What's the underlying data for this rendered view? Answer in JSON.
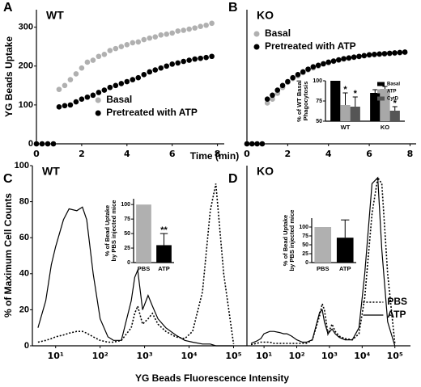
{
  "chart_data": [
    {
      "type": "scatter",
      "panel": "A",
      "title": "WT",
      "xlabel": "Time (min)",
      "ylabel": "YG Beads Uptake",
      "x": [
        0,
        0.25,
        0.5,
        0.75,
        1,
        1.25,
        1.5,
        1.75,
        2,
        2.25,
        2.5,
        2.75,
        3,
        3.25,
        3.5,
        3.75,
        4,
        4.25,
        4.5,
        4.75,
        5,
        5.25,
        5.5,
        5.75,
        6,
        6.25,
        6.5,
        6.75,
        7,
        7.25,
        7.5,
        7.75
      ],
      "series": [
        {
          "name": "Basal",
          "color": "#b0b0b0",
          "values": [
            0,
            0,
            0,
            0,
            140,
            150,
            165,
            180,
            195,
            210,
            215,
            225,
            230,
            240,
            245,
            250,
            255,
            260,
            262,
            268,
            272,
            275,
            280,
            282,
            285,
            290,
            292,
            295,
            298,
            302,
            305,
            310
          ]
        },
        {
          "name": "Pretreated with ATP",
          "color": "#000000",
          "values": [
            0,
            0,
            0,
            0,
            95,
            98,
            100,
            108,
            115,
            120,
            125,
            132,
            138,
            145,
            150,
            155,
            160,
            165,
            170,
            178,
            185,
            190,
            195,
            200,
            205,
            208,
            212,
            215,
            218,
            220,
            222,
            225
          ]
        }
      ],
      "xlim": [
        0,
        8.3
      ],
      "xticks": [
        0,
        2,
        4,
        6,
        8
      ],
      "ylim": [
        0,
        345
      ],
      "yticks": [
        0,
        100,
        200,
        300
      ],
      "legend": "lower right"
    },
    {
      "type": "scatter",
      "panel": "B",
      "title": "KO",
      "x": [
        0,
        0.25,
        0.5,
        0.75,
        1,
        1.25,
        1.5,
        1.75,
        2,
        2.25,
        2.5,
        2.75,
        3,
        3.25,
        3.5,
        3.75,
        4,
        4.25,
        4.5,
        4.75,
        5,
        5.25,
        5.5,
        5.75,
        6,
        6.25,
        6.5,
        6.75,
        7,
        7.25,
        7.5,
        7.75
      ],
      "series": [
        {
          "name": "Basal",
          "color": "#b0b0b0",
          "values": [
            0,
            0,
            0,
            0,
            105,
            115,
            130,
            145,
            158,
            168,
            175,
            183,
            190,
            195,
            200,
            205,
            208,
            212,
            215,
            218,
            220,
            222,
            224,
            226,
            228,
            229,
            230,
            231,
            232,
            233,
            234,
            235
          ]
        },
        {
          "name": "Pretreated with ATP",
          "color": "#000000",
          "values": [
            0,
            0,
            0,
            0,
            115,
            125,
            138,
            150,
            160,
            170,
            178,
            185,
            192,
            198,
            202,
            206,
            210,
            213,
            216,
            219,
            221,
            223,
            225,
            227,
            229,
            230,
            231,
            232,
            233,
            234,
            235,
            236
          ]
        }
      ],
      "xlim": [
        0,
        8.3
      ],
      "xticks": [
        0,
        2,
        4,
        6,
        8
      ],
      "ylim": [
        0,
        345
      ],
      "legend": "upper left"
    },
    {
      "type": "bar",
      "ylabel": [
        "% of WT Basal",
        "Phagocytosis"
      ],
      "categories": [
        "WT",
        "KO"
      ],
      "series": [
        {
          "name": "Basal",
          "color": "#000000",
          "values": [
            100,
            85
          ],
          "errors": [
            null,
            4
          ]
        },
        {
          "name": "ATP",
          "color": "#a8a8a8",
          "values": [
            70,
            90
          ],
          "errors": [
            15,
            3
          ],
          "annotations": [
            "*",
            null
          ]
        },
        {
          "name": "CytD",
          "color": "#555555",
          "values": [
            68,
            63
          ],
          "errors": [
            12,
            5
          ],
          "annotations": [
            "*",
            "*"
          ]
        }
      ],
      "ylim": [
        50,
        100
      ],
      "yticks": [
        50,
        75,
        100
      ],
      "legend": "upper right"
    },
    {
      "type": "line",
      "panel": "C",
      "title": "WT",
      "xlabel": "YG Beads Fluorescence Intensity",
      "ylabel": "% of Maximum Cell Counts",
      "xscale": "log",
      "x": [
        4,
        6,
        8,
        10,
        15,
        20,
        30,
        40,
        50,
        70,
        100,
        150,
        200,
        300,
        500,
        600,
        700,
        900,
        1200,
        1500,
        2000,
        3000,
        5000,
        8000,
        12000,
        20000,
        30000,
        40000,
        60000,
        100000
      ],
      "series": [
        {
          "linestyle": "dotted",
          "color": "#000000",
          "values": [
            2,
            3,
            4,
            5,
            6,
            7,
            8,
            8,
            7,
            5,
            3,
            2,
            2,
            3,
            10,
            18,
            22,
            12,
            15,
            18,
            12,
            8,
            5,
            4,
            8,
            30,
            75,
            90,
            40,
            1
          ]
        },
        {
          "linestyle": "solid",
          "color": "#000000",
          "values": [
            10,
            25,
            45,
            55,
            70,
            76,
            75,
            77,
            70,
            40,
            15,
            5,
            3,
            3,
            25,
            38,
            42,
            20,
            28,
            22,
            15,
            10,
            6,
            3,
            2,
            1,
            1,
            0,
            0,
            0
          ]
        }
      ],
      "xlim": [
        3,
        200000
      ],
      "xticks": [
        {
          "value": 10,
          "label": "10¹"
        },
        {
          "value": 100,
          "label": "10²"
        },
        {
          "value": 1000,
          "label": "10³"
        },
        {
          "value": 10000,
          "label": "10⁴"
        },
        {
          "value": 100000,
          "label": "10⁵"
        }
      ],
      "ylim": [
        0,
        100
      ],
      "yticks": [
        0,
        20,
        40,
        60,
        80,
        100
      ]
    },
    {
      "type": "bar",
      "ylabel": [
        "% of Bead Uptake",
        "by PBS injected mice"
      ],
      "categories": [
        "PBS",
        "ATP"
      ],
      "series": [
        {
          "colors": [
            "#b0b0b0",
            "#000000"
          ],
          "values": [
            100,
            30
          ],
          "errors": [
            null,
            20
          ],
          "annotations": [
            null,
            "**"
          ]
        }
      ],
      "ylim": [
        0,
        110
      ],
      "yticks": [
        0,
        25,
        50,
        75,
        100
      ]
    },
    {
      "type": "line",
      "panel": "D",
      "title": "KO",
      "xscale": "log",
      "x": [
        4,
        6,
        8,
        10,
        15,
        20,
        30,
        40,
        50,
        70,
        100,
        150,
        200,
        300,
        500,
        600,
        700,
        900,
        1200,
        1500,
        2000,
        3000,
        5000,
        8000,
        12000,
        20000,
        30000,
        40000,
        60000,
        100000
      ],
      "series": [
        {
          "name": "PBS",
          "linestyle": "dotted",
          "color": "#000000",
          "values": [
            1,
            2,
            3,
            3,
            3,
            2,
            2,
            2,
            2,
            2,
            2,
            2,
            2,
            5,
            25,
            35,
            30,
            10,
            18,
            12,
            8,
            6,
            5,
            10,
            40,
            110,
            140,
            135,
            60,
            2
          ]
        },
        {
          "name": "ATP",
          "linestyle": "solid",
          "color": "#000000",
          "values": [
            2,
            4,
            6,
            10,
            12,
            12,
            11,
            10,
            10,
            8,
            5,
            3,
            3,
            5,
            28,
            30,
            20,
            10,
            14,
            10,
            7,
            5,
            5,
            15,
            60,
            135,
            140,
            80,
            20,
            0
          ]
        }
      ],
      "xlim": [
        3,
        300000
      ],
      "xticks": [
        {
          "value": 10,
          "label": "10¹"
        },
        {
          "value": 100,
          "label": "10²"
        },
        {
          "value": 1000,
          "label": "10³"
        },
        {
          "value": 10000,
          "label": "10⁴"
        },
        {
          "value": 100000,
          "label": "10⁵"
        }
      ],
      "ylim": [
        0,
        150
      ],
      "legend": "lower right"
    },
    {
      "type": "bar",
      "ylabel": [
        "% of Bead Uptake",
        "by PBS injected mice"
      ],
      "categories": [
        "PBS",
        "ATP"
      ],
      "series": [
        {
          "colors": [
            "#b0b0b0",
            "#000000"
          ],
          "values": [
            100,
            70
          ],
          "errors": [
            null,
            50
          ]
        }
      ],
      "ylim": [
        0,
        125
      ],
      "yticks": [
        0,
        25,
        50,
        75,
        100
      ]
    }
  ]
}
